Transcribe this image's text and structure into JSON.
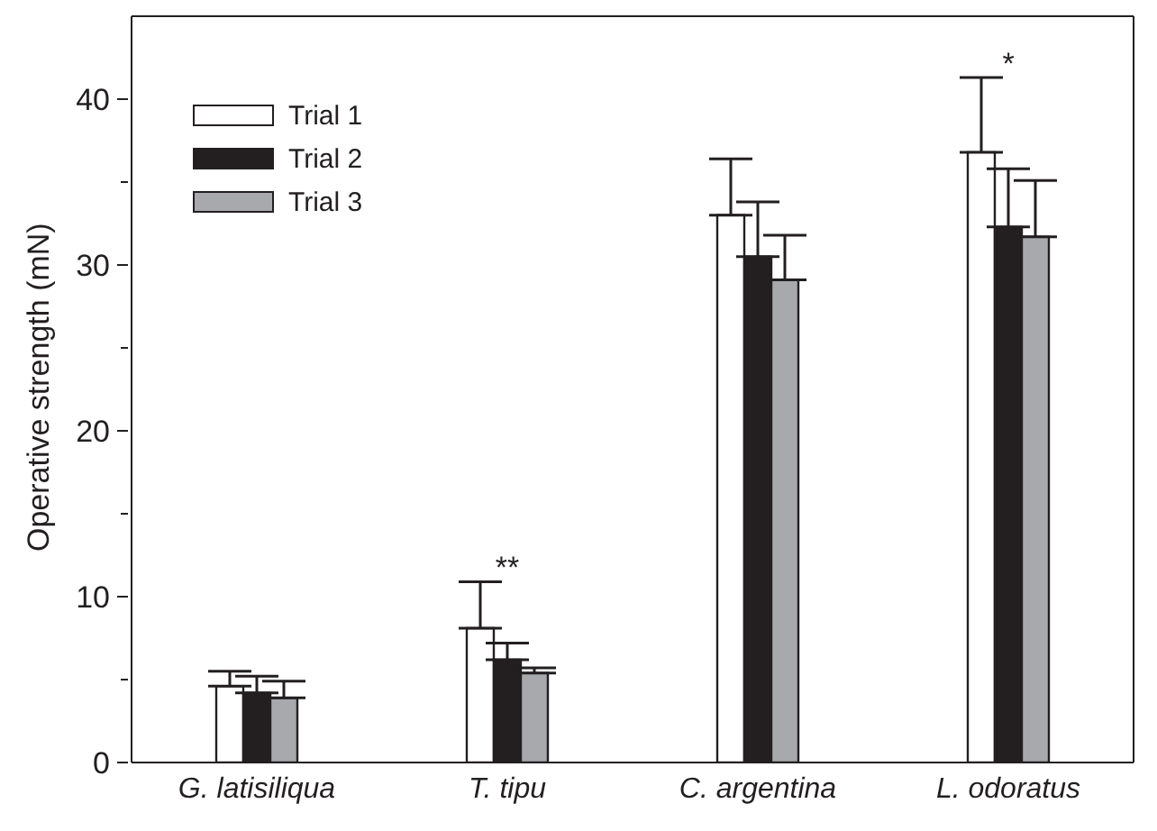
{
  "chart_data": {
    "type": "bar",
    "ylabel": "Operative strength (mN)",
    "categories": [
      "G. latisiliqua",
      "T. tipu",
      "C. argentina",
      "L. odoratus"
    ],
    "series": [
      {
        "name": "Trial 1",
        "color": "#ffffff",
        "values": [
          4.6,
          8.1,
          33.0,
          36.8
        ],
        "errors": [
          [
            4.6,
            5.5
          ],
          [
            8.1,
            10.9
          ],
          [
            33.0,
            36.4
          ],
          [
            36.8,
            41.3
          ]
        ]
      },
      {
        "name": "Trial 2",
        "color": "#231f20",
        "values": [
          4.2,
          6.2,
          30.5,
          32.3
        ],
        "errors": [
          [
            4.2,
            5.2
          ],
          [
            6.2,
            7.2
          ],
          [
            30.5,
            33.8
          ],
          [
            32.3,
            35.8
          ]
        ]
      },
      {
        "name": "Trial 3",
        "color": "#a7a9ac",
        "values": [
          3.9,
          5.4,
          29.1,
          31.7
        ],
        "errors": [
          [
            3.9,
            4.9
          ],
          [
            5.4,
            5.7
          ],
          [
            29.1,
            31.8
          ],
          [
            31.7,
            35.1
          ]
        ]
      }
    ],
    "ylim": [
      0,
      45
    ],
    "yticks": [
      0,
      {
        "value": 5,
        "label": null
      },
      10,
      {
        "value": 15,
        "label": null
      },
      20,
      {
        "value": 25,
        "label": null
      },
      30,
      {
        "value": 35,
        "label": null
      },
      40
    ],
    "annotations": [
      {
        "text": "**",
        "x": "T. tipu",
        "y": 10.9
      },
      {
        "text": "*",
        "x": "L. odoratus",
        "y": 41.3
      }
    ],
    "legend": "top left",
    "grid": false
  }
}
